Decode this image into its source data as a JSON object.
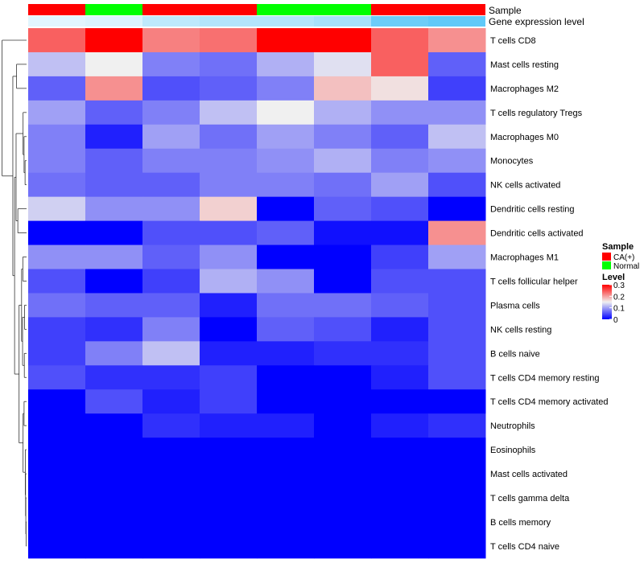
{
  "chart_data": {
    "type": "heatmap",
    "annotations": [
      {
        "name": "Sample",
        "values": [
          "CA(+)",
          "Normal",
          "CA(+)",
          "CA(+)",
          "Normal",
          "Normal",
          "CA(+)",
          "CA(+)"
        ]
      },
      {
        "name": "Gene expression level",
        "values": [
          0.05,
          0.06,
          0.11,
          0.13,
          0.13,
          0.15,
          0.25,
          0.27
        ]
      }
    ],
    "rows": [
      "T cells CD8",
      "Mast cells resting",
      "Macrophages M2",
      "T cells regulatory  Tregs",
      "Macrophages M0",
      "Monocytes",
      "NK cells activated",
      "Dendritic cells resting",
      "Dendritic cells activated",
      "Macrophages M1",
      "T cells follicular helper",
      "Plasma cells",
      "NK cells resting",
      "B cells naive",
      "T cells CD4 memory resting",
      "T cells CD4 memory activated",
      "Neutrophils",
      "Eosinophils",
      "Mast cells activated",
      "T cells gamma delta",
      "B cells memory",
      "T cells CD4 naive"
    ],
    "values": [
      [
        0.24,
        0.3,
        0.22,
        0.23,
        0.3,
        0.3,
        0.24,
        0.21
      ],
      [
        0.12,
        0.15,
        0.08,
        0.07,
        0.11,
        0.14,
        0.24,
        0.06
      ],
      [
        0.06,
        0.21,
        0.05,
        0.06,
        0.08,
        0.18,
        0.16,
        0.04
      ],
      [
        0.1,
        0.06,
        0.08,
        0.12,
        0.15,
        0.11,
        0.09,
        0.09
      ],
      [
        0.08,
        0.02,
        0.1,
        0.07,
        0.1,
        0.08,
        0.06,
        0.12
      ],
      [
        0.08,
        0.06,
        0.08,
        0.08,
        0.09,
        0.11,
        0.08,
        0.09
      ],
      [
        0.07,
        0.06,
        0.06,
        0.08,
        0.08,
        0.07,
        0.1,
        0.05
      ],
      [
        0.13,
        0.09,
        0.09,
        0.17,
        0.0,
        0.06,
        0.05,
        0.0
      ],
      [
        0.0,
        0.0,
        0.05,
        0.05,
        0.06,
        0.01,
        0.01,
        0.21
      ],
      [
        0.09,
        0.09,
        0.06,
        0.09,
        0.0,
        0.0,
        0.04,
        0.1
      ],
      [
        0.05,
        0.0,
        0.04,
        0.11,
        0.09,
        0.0,
        0.05,
        0.05
      ],
      [
        0.07,
        0.06,
        0.06,
        0.02,
        0.07,
        0.07,
        0.06,
        0.05
      ],
      [
        0.04,
        0.03,
        0.08,
        0.0,
        0.06,
        0.05,
        0.02,
        0.05
      ],
      [
        0.04,
        0.08,
        0.12,
        0.02,
        0.02,
        0.03,
        0.03,
        0.05
      ],
      [
        0.05,
        0.03,
        0.03,
        0.04,
        0.0,
        0.0,
        0.02,
        0.05
      ],
      [
        0.0,
        0.05,
        0.02,
        0.04,
        0.0,
        0.0,
        0.0,
        0.0
      ],
      [
        0.0,
        0.0,
        0.03,
        0.02,
        0.02,
        0.0,
        0.02,
        0.03
      ],
      [
        0.0,
        0.0,
        0.0,
        0.0,
        0.0,
        0.0,
        0.0,
        0.0
      ],
      [
        0.0,
        0.0,
        0.0,
        0.0,
        0.0,
        0.0,
        0.0,
        0.0
      ],
      [
        0.0,
        0.0,
        0.0,
        0.0,
        0.0,
        0.0,
        0.0,
        0.0
      ],
      [
        0.0,
        0.0,
        0.0,
        0.0,
        0.0,
        0.0,
        0.0,
        0.0
      ],
      [
        0.0,
        0.0,
        0.0,
        0.0,
        0.0,
        0.0,
        0.0,
        0.0
      ]
    ],
    "color_scale": {
      "min": 0,
      "mid": 0.15,
      "max": 0.3,
      "low": "#0000FF",
      "midcolor": "#F0F0F0",
      "high": "#FF0000"
    },
    "row_dendrogram": true,
    "legend": {
      "placement": "right",
      "sample_title": "Sample",
      "sample_items": [
        {
          "label": "CA(+)",
          "color": "#FF0000"
        },
        {
          "label": "Normal",
          "color": "#00FF00"
        }
      ],
      "level_title": "Level",
      "level_ticks": [
        "0.3",
        "0.2",
        "0.1",
        "0"
      ],
      "level_tick_values": [
        0.3,
        0.2,
        0.1,
        0
      ]
    },
    "expression_scale": {
      "min": 0,
      "max": 0.3,
      "low": "#FFFFFF",
      "high": "#4FC3F7"
    }
  }
}
